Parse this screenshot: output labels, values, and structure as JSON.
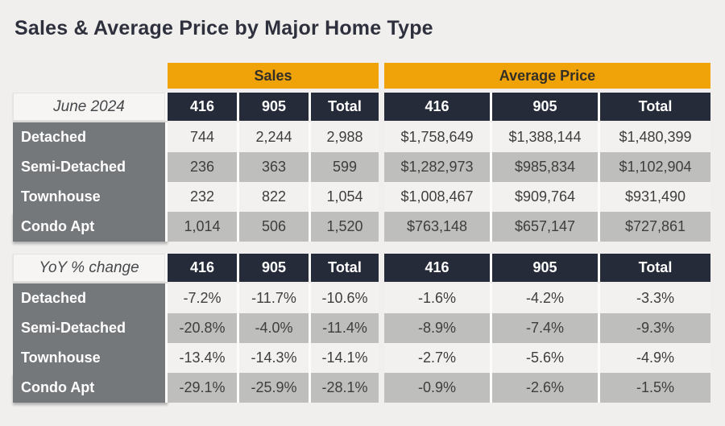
{
  "title": "Sales & Average Price by Major Home Type",
  "bands": {
    "sales": "Sales",
    "average_price": "Average Price"
  },
  "tables": [
    {
      "corner_label": "June 2024",
      "columns": [
        "416",
        "905",
        "Total",
        "416",
        "905",
        "Total"
      ],
      "rows": [
        {
          "label": "Detached",
          "values": [
            "744",
            "2,244",
            "2,988",
            "$1,758,649",
            "$1,388,144",
            "$1,480,399"
          ]
        },
        {
          "label": "Semi-Detached",
          "values": [
            "236",
            "363",
            "599",
            "$1,282,973",
            "$985,834",
            "$1,102,904"
          ]
        },
        {
          "label": "Townhouse",
          "values": [
            "232",
            "822",
            "1,054",
            "$1,008,467",
            "$909,764",
            "$931,490"
          ]
        },
        {
          "label": "Condo Apt",
          "values": [
            "1,014",
            "506",
            "1,520",
            "$763,148",
            "$657,147",
            "$727,861"
          ]
        }
      ]
    },
    {
      "corner_label": "YoY % change",
      "columns": [
        "416",
        "905",
        "Total",
        "416",
        "905",
        "Total"
      ],
      "rows": [
        {
          "label": "Detached",
          "values": [
            "-7.2%",
            "-11.7%",
            "-10.6%",
            "-1.6%",
            "-4.2%",
            "-3.3%"
          ]
        },
        {
          "label": "Semi-Detached",
          "values": [
            "-20.8%",
            "-4.0%",
            "-11.4%",
            "-8.9%",
            "-7.4%",
            "-9.3%"
          ]
        },
        {
          "label": "Townhouse",
          "values": [
            "-13.4%",
            "-14.3%",
            "-14.1%",
            "-2.7%",
            "-5.6%",
            "-4.9%"
          ]
        },
        {
          "label": "Condo Apt",
          "values": [
            "-29.1%",
            "-25.9%",
            "-28.1%",
            "-0.9%",
            "-2.6%",
            "-1.5%"
          ]
        }
      ]
    }
  ],
  "colors": {
    "page_background": "#f0efed",
    "band_gold": "#f0a309",
    "header_navy": "#262b39",
    "row_label_gray": "#75787b",
    "row_light": "#f2f1ef",
    "row_gray": "#bebebc",
    "data_text": "#3e3e3e",
    "title_text": "#2e313d"
  },
  "chart_data": {
    "type": "table",
    "title": "Sales & Average Price by Major Home Type",
    "column_groups": [
      "Sales",
      "Average Price"
    ],
    "region_columns": [
      "416",
      "905",
      "Total"
    ],
    "sections": [
      {
        "period": "June 2024",
        "rows": [
          {
            "home_type": "Detached",
            "sales": {
              "416": 744,
              "905": 2244,
              "total": 2988
            },
            "average_price": {
              "416": 1758649,
              "905": 1388144,
              "total": 1480399
            }
          },
          {
            "home_type": "Semi-Detached",
            "sales": {
              "416": 236,
              "905": 363,
              "total": 599
            },
            "average_price": {
              "416": 1282973,
              "905": 985834,
              "total": 1102904
            }
          },
          {
            "home_type": "Townhouse",
            "sales": {
              "416": 232,
              "905": 822,
              "total": 1054
            },
            "average_price": {
              "416": 1008467,
              "905": 909764,
              "total": 931490
            }
          },
          {
            "home_type": "Condo Apt",
            "sales": {
              "416": 1014,
              "905": 506,
              "total": 1520
            },
            "average_price": {
              "416": 763148,
              "905": 657147,
              "total": 727861
            }
          }
        ]
      },
      {
        "period": "YoY % change",
        "rows": [
          {
            "home_type": "Detached",
            "sales_yoy_pct": {
              "416": -7.2,
              "905": -11.7,
              "total": -10.6
            },
            "average_price_yoy_pct": {
              "416": -1.6,
              "905": -4.2,
              "total": -3.3
            }
          },
          {
            "home_type": "Semi-Detached",
            "sales_yoy_pct": {
              "416": -20.8,
              "905": -4.0,
              "total": -11.4
            },
            "average_price_yoy_pct": {
              "416": -8.9,
              "905": -7.4,
              "total": -9.3
            }
          },
          {
            "home_type": "Townhouse",
            "sales_yoy_pct": {
              "416": -13.4,
              "905": -14.3,
              "total": -14.1
            },
            "average_price_yoy_pct": {
              "416": -2.7,
              "905": -5.6,
              "total": -4.9
            }
          },
          {
            "home_type": "Condo Apt",
            "sales_yoy_pct": {
              "416": -29.1,
              "905": -25.9,
              "total": -28.1
            },
            "average_price_yoy_pct": {
              "416": -0.9,
              "905": -2.6,
              "total": -1.5
            }
          }
        ]
      }
    ]
  }
}
